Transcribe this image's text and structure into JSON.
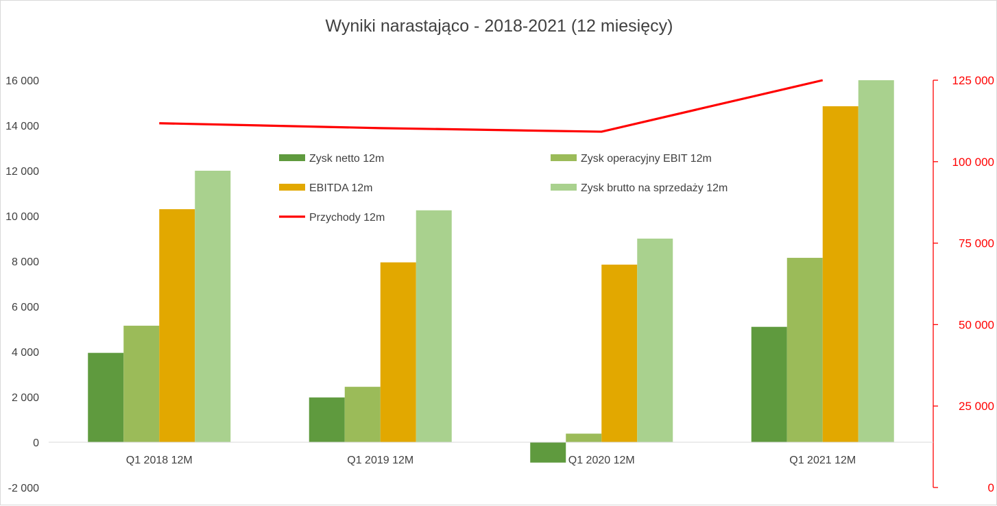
{
  "chart_data": {
    "type": "bar",
    "title": "Wyniki narastająco - 2018-2021 (12 miesięcy)",
    "categories": [
      "Q1 2018 12M",
      "Q1 2019 12M",
      "Q1 2020 12M",
      "Q1 2021 12M"
    ],
    "series": [
      {
        "name": "Zysk netto 12m",
        "type": "bar",
        "axis": "left",
        "color": "#5f9a3e",
        "values": [
          3950,
          1980,
          -900,
          5100
        ]
      },
      {
        "name": "Zysk operacyjny EBIT 12m",
        "type": "bar",
        "axis": "left",
        "color": "#9bbb59",
        "values": [
          5150,
          2450,
          380,
          8150
        ]
      },
      {
        "name": "EBITDA 12m",
        "type": "bar",
        "axis": "left",
        "color": "#e2a800",
        "values": [
          10300,
          7950,
          7850,
          14850
        ]
      },
      {
        "name": "Zysk brutto na sprzedaży 12m",
        "type": "bar",
        "axis": "left",
        "color": "#a9d18e",
        "values": [
          12000,
          10250,
          9000,
          16000
        ]
      },
      {
        "name": "Przychody 12m",
        "type": "line",
        "axis": "right",
        "color": "#ff0000",
        "values": [
          111800,
          110300,
          109200,
          125000
        ]
      }
    ],
    "y_left": {
      "min": -2000,
      "max": 16000,
      "step": 2000,
      "tick_labels": [
        "-2 000",
        "0",
        "2 000",
        "4 000",
        "6 000",
        "8 000",
        "10 000",
        "12 000",
        "14 000",
        "16 000"
      ]
    },
    "y_right": {
      "min": 0,
      "max": 125000,
      "step": 25000,
      "color": "#ff0000",
      "tick_labels": [
        "0",
        "25 000",
        "50 000",
        "75 000",
        "100 000",
        "125 000"
      ]
    },
    "grid": false,
    "legend_position": "inside-top"
  }
}
